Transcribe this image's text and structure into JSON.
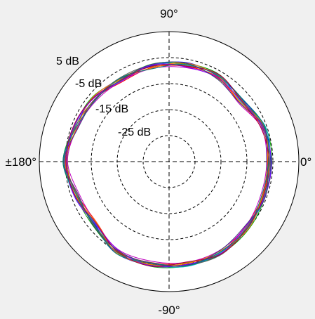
{
  "chart_data": {
    "type": "line",
    "subtype": "polar",
    "title": "",
    "radial_unit": "dB",
    "radial_range": [
      -35,
      15
    ],
    "ring_values": [
      5,
      -5,
      -15,
      -25
    ],
    "ring_labels": [
      "5 dB",
      "-5 dB",
      "-15 dB",
      "-25 dB"
    ],
    "angle_labels": {
      "deg_90": "90°",
      "deg_0": "0°",
      "deg_neg90": "-90°",
      "deg_180": "±180°"
    },
    "grid": true,
    "angles_deg": [
      0,
      20,
      40,
      60,
      80,
      100,
      120,
      140,
      160,
      180,
      200,
      220,
      240,
      260,
      280,
      300,
      320,
      340
    ],
    "base_db": [
      3.6,
      3.6,
      1.2,
      2.6,
      2.8,
      2.2,
      1.5,
      2.6,
      3.3,
      5.0,
      3.0,
      2.2,
      4.9,
      5.0,
      5.0,
      5.2,
      4.2,
      3.6
    ],
    "series": [
      {
        "offsets_db": [
          0.6,
          0.4,
          0.8,
          0.2,
          0.9,
          0.3,
          0.5,
          0.7,
          0.1,
          0.4,
          0.6,
          0.2,
          0.8,
          0.5,
          0.3,
          0.7,
          0.4,
          0.6
        ]
      },
      {
        "offsets_db": [
          -0.5,
          -0.3,
          -0.8,
          -0.1,
          -0.6,
          -0.4,
          -0.9,
          -0.2,
          -0.7,
          -0.3,
          -0.5,
          -0.8,
          -0.1,
          -0.6,
          -0.4,
          -0.2,
          -0.7,
          -0.3
        ]
      },
      {
        "offsets_db": [
          1.0,
          0.8,
          0.3,
          1.1,
          0.5,
          0.9,
          0.2,
          1.0,
          0.6,
          0.8,
          0.4,
          1.1,
          0.3,
          0.9,
          0.7,
          0.5,
          1.0,
          0.8
        ]
      },
      {
        "offsets_db": [
          -1.0,
          -0.7,
          -1.2,
          -0.4,
          -1.1,
          -0.8,
          -0.5,
          -1.0,
          -0.6,
          -0.9,
          -1.2,
          -0.5,
          -0.8,
          -1.1,
          -0.7,
          -0.9,
          -0.6,
          -1.0
        ]
      },
      {
        "offsets_db": [
          0.2,
          0.9,
          -0.2,
          0.6,
          0.0,
          0.7,
          -0.3,
          0.4,
          0.9,
          0.1,
          0.8,
          -0.2,
          0.5,
          0.2,
          0.9,
          0.0,
          0.6,
          0.3
        ]
      },
      {
        "offsets_db": [
          -0.2,
          0.1,
          0.4,
          -0.6,
          0.3,
          -0.1,
          0.6,
          -0.4,
          0.2,
          -0.7,
          0.0,
          0.5,
          -0.3,
          0.1,
          -0.5,
          0.4,
          -0.2,
          0.0
        ]
      },
      {
        "offsets_db": [
          0.4,
          -0.4,
          0.6,
          0.8,
          -0.3,
          0.5,
          0.9,
          -0.2,
          0.3,
          0.6,
          -0.4,
          0.7,
          0.2,
          -0.5,
          0.4,
          0.8,
          -0.1,
          0.5
        ]
      },
      {
        "offsets_db": [
          -0.7,
          0.5,
          -0.5,
          0.3,
          0.7,
          -0.6,
          0.2,
          0.8,
          -0.4,
          0.0,
          0.3,
          -0.7,
          0.6,
          0.3,
          -0.2,
          -0.6,
          0.8,
          -0.4
        ]
      },
      {
        "offsets_db": [
          0.8,
          -0.1,
          0.1,
          -0.3,
          -0.8,
          0.6,
          -0.6,
          0.3,
          0.7,
          -0.5,
          0.9,
          0.0,
          -0.6,
          0.7,
          0.1,
          0.3,
          -0.5,
          0.7
        ]
      },
      {
        "offsets_db": [
          -0.3,
          0.6,
          1.0,
          0.4,
          0.1,
          -0.9,
          0.7,
          -0.7,
          -0.2,
          0.9,
          -0.1,
          0.4,
          0.9,
          -0.4,
          0.6,
          -0.3,
          0.2,
          -0.6
        ]
      },
      {
        "offsets_db": [
          0.0,
          -0.9,
          0.2,
          1.0,
          -0.5,
          0.1,
          -0.2,
          0.5,
          1.0,
          -0.2,
          0.5,
          -0.4,
          0.0,
          0.8,
          -0.8,
          0.6,
          0.3,
          0.1
        ]
      },
      {
        "offsets_db": [
          -0.9,
          0.3,
          -0.9,
          -0.8,
          0.6,
          0.8,
          0.0,
          -0.5,
          -0.9,
          0.5,
          -0.8,
          0.9,
          -0.4,
          -0.2,
          0.5,
          -0.8,
          -0.9,
          0.9
        ]
      }
    ],
    "colors": [
      "#0000ff",
      "#ff0000",
      "#00a000",
      "#c000c0",
      "#00b0c0",
      "#a08000",
      "#606060",
      "#ff8000",
      "#8000ff",
      "#008080",
      "#b00040",
      "#404080"
    ]
  }
}
